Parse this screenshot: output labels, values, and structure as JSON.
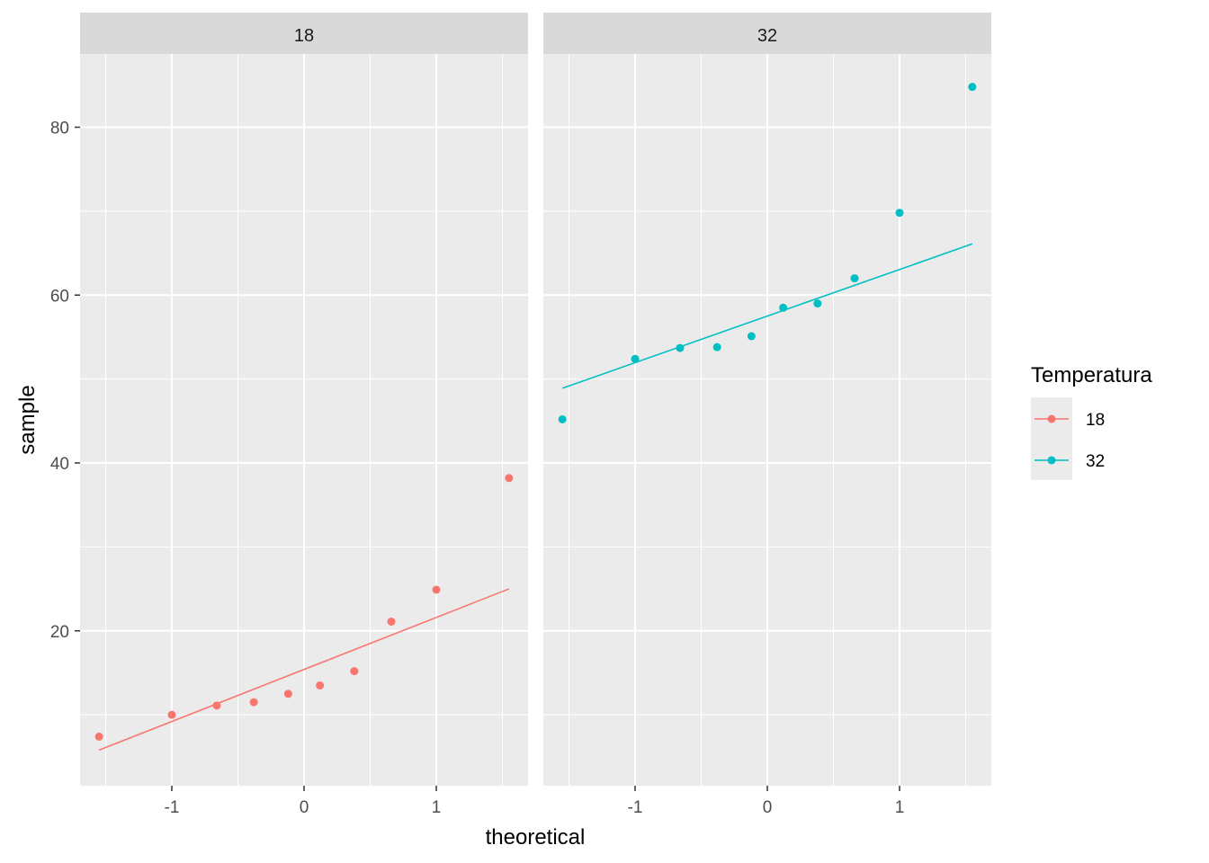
{
  "chart_data": {
    "type": "scatter",
    "subtype": "qq-plot faceted",
    "xlabel": "theoretical",
    "ylabel": "sample",
    "x_ticks": [
      -1,
      0,
      1
    ],
    "x_tick_labels": [
      "-1",
      "0",
      "1"
    ],
    "y_ticks": [
      20,
      40,
      60,
      80
    ],
    "y_tick_labels": [
      "20",
      "40",
      "60",
      "80"
    ],
    "xlim": [
      -1.69,
      1.69
    ],
    "ylim": [
      2,
      89
    ],
    "grid": true,
    "legend": {
      "title": "Temperatura",
      "position": "right",
      "entries": [
        "18",
        "32"
      ]
    },
    "facets": [
      {
        "label": "18",
        "color": "#F8766D",
        "points": [
          {
            "x": -1.55,
            "y": 7.4
          },
          {
            "x": -1.0,
            "y": 10.0
          },
          {
            "x": -0.66,
            "y": 11.1
          },
          {
            "x": -0.38,
            "y": 11.5
          },
          {
            "x": -0.12,
            "y": 12.5
          },
          {
            "x": 0.12,
            "y": 13.5
          },
          {
            "x": 0.38,
            "y": 15.2
          },
          {
            "x": 0.66,
            "y": 21.1
          },
          {
            "x": 1.0,
            "y": 24.9
          },
          {
            "x": 1.55,
            "y": 38.2
          }
        ],
        "line": {
          "x0": -1.55,
          "y0": 5.8,
          "x1": 1.55,
          "y1": 25.0
        }
      },
      {
        "label": "32",
        "color": "#00BFC4",
        "points": [
          {
            "x": -1.55,
            "y": 45.2
          },
          {
            "x": -1.0,
            "y": 52.4
          },
          {
            "x": -0.66,
            "y": 53.7
          },
          {
            "x": -0.38,
            "y": 53.8
          },
          {
            "x": -0.12,
            "y": 55.1
          },
          {
            "x": 0.12,
            "y": 58.5
          },
          {
            "x": 0.38,
            "y": 59.0
          },
          {
            "x": 0.66,
            "y": 62.0
          },
          {
            "x": 1.0,
            "y": 69.8
          },
          {
            "x": 1.55,
            "y": 84.8
          }
        ],
        "line": {
          "x0": -1.55,
          "y0": 48.9,
          "x1": 1.55,
          "y1": 66.1
        }
      }
    ]
  },
  "colors": {
    "panel_bg": "#EBEBEB",
    "strip_bg": "#D9D9D9",
    "grid": "#FFFFFF",
    "series_18": "#F8766D",
    "series_32": "#00BFC4"
  }
}
